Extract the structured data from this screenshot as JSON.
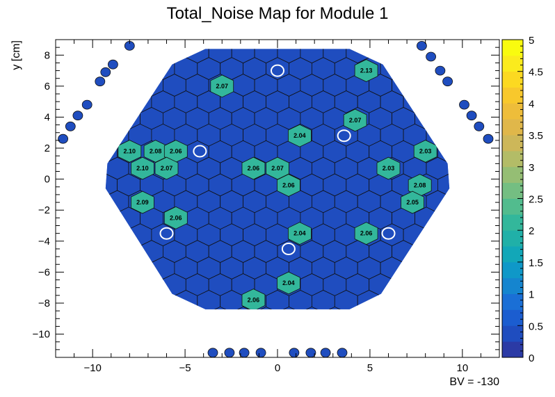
{
  "chart_data": {
    "type": "heatmap",
    "title": "Total_Noise Map for Module 1",
    "xlabel": "",
    "ylabel": "y [cm]",
    "annotation": "BV = -130",
    "xlim": [
      -12,
      12
    ],
    "ylim": [
      -11.5,
      9
    ],
    "x_ticks": [
      "−10",
      "−5",
      "0",
      "5",
      "10"
    ],
    "y_ticks": [
      "8",
      "6",
      "4",
      "2",
      "0",
      "−2",
      "−4",
      "−6",
      "−8",
      "−10"
    ],
    "colorbar": {
      "range": [
        0,
        5
      ],
      "ticks": [
        "0",
        "0.5",
        "1",
        "1.5",
        "2",
        "2.5",
        "3",
        "3.5",
        "4",
        "4.5",
        "5"
      ],
      "colors": [
        "#2b3aa5",
        "#1f4dbf",
        "#1b5dd0",
        "#1a6fd6",
        "#1585cf",
        "#0f98c8",
        "#12a7b8",
        "#20b0a8",
        "#33b79b",
        "#52bc8e",
        "#74be82",
        "#95be74",
        "#b3bc67",
        "#cdb759",
        "#e0b74a",
        "#eebd3a",
        "#f8c82c",
        "#fcd921",
        "#fbeb1d",
        "#f9fb0f"
      ]
    },
    "background_value_approx": 0.3,
    "labeled_cells": [
      {
        "x": 4.8,
        "y": 7.0,
        "value": "2.13"
      },
      {
        "x": -3.0,
        "y": 6.0,
        "value": "2.07"
      },
      {
        "x": 4.2,
        "y": 3.8,
        "value": "2.07"
      },
      {
        "x": 1.2,
        "y": 2.8,
        "value": "2.04"
      },
      {
        "x": -8.0,
        "y": 1.8,
        "value": "2.10"
      },
      {
        "x": -6.6,
        "y": 1.8,
        "value": "2.08"
      },
      {
        "x": -5.5,
        "y": 1.8,
        "value": "2.06"
      },
      {
        "x": 8.0,
        "y": 1.8,
        "value": "2.03"
      },
      {
        "x": -7.3,
        "y": 0.7,
        "value": "2.10"
      },
      {
        "x": -6.0,
        "y": 0.7,
        "value": "2.07"
      },
      {
        "x": -1.3,
        "y": 0.7,
        "value": "2.06"
      },
      {
        "x": 0.0,
        "y": 0.7,
        "value": "2.07"
      },
      {
        "x": 6.0,
        "y": 0.7,
        "value": "2.03"
      },
      {
        "x": 0.6,
        "y": -0.4,
        "value": "2.06"
      },
      {
        "x": 7.7,
        "y": -0.4,
        "value": "2.08"
      },
      {
        "x": -7.3,
        "y": -1.5,
        "value": "2.09"
      },
      {
        "x": 7.3,
        "y": -1.5,
        "value": "2.05"
      },
      {
        "x": -5.5,
        "y": -2.5,
        "value": "2.06"
      },
      {
        "x": 1.2,
        "y": -3.5,
        "value": "2.04"
      },
      {
        "x": 4.8,
        "y": -3.5,
        "value": "2.06"
      },
      {
        "x": 0.6,
        "y": -6.7,
        "value": "2.04"
      },
      {
        "x": -1.3,
        "y": -7.8,
        "value": "2.06"
      }
    ],
    "calibration_cells": [
      {
        "x": 0.0,
        "y": 7.0
      },
      {
        "x": 3.6,
        "y": 2.8
      },
      {
        "x": -4.2,
        "y": 1.8
      },
      {
        "x": -6.0,
        "y": -3.5
      },
      {
        "x": 6.0,
        "y": -3.5
      },
      {
        "x": 0.6,
        "y": -4.5
      }
    ],
    "outer_pads": [
      {
        "x": -8.0,
        "y": 8.6
      },
      {
        "x": -8.9,
        "y": 7.4
      },
      {
        "x": -9.3,
        "y": 6.9
      },
      {
        "x": -9.6,
        "y": 6.3
      },
      {
        "x": -10.3,
        "y": 4.8
      },
      {
        "x": -10.8,
        "y": 4.1
      },
      {
        "x": -11.2,
        "y": 3.4
      },
      {
        "x": -11.6,
        "y": 2.6
      },
      {
        "x": 7.8,
        "y": 8.6
      },
      {
        "x": 8.3,
        "y": 7.9
      },
      {
        "x": 8.8,
        "y": 7.0
      },
      {
        "x": 9.2,
        "y": 6.3
      },
      {
        "x": 10.1,
        "y": 4.8
      },
      {
        "x": 10.5,
        "y": 4.1
      },
      {
        "x": 10.9,
        "y": 3.4
      },
      {
        "x": 11.4,
        "y": 2.6
      },
      {
        "x": -3.5,
        "y": -11.2
      },
      {
        "x": -2.6,
        "y": -11.2
      },
      {
        "x": -1.8,
        "y": -11.2
      },
      {
        "x": -0.9,
        "y": -11.2
      },
      {
        "x": 0.9,
        "y": -11.2
      },
      {
        "x": 1.8,
        "y": -11.2
      },
      {
        "x": 2.6,
        "y": -11.2
      },
      {
        "x": 3.5,
        "y": -11.2
      }
    ]
  }
}
